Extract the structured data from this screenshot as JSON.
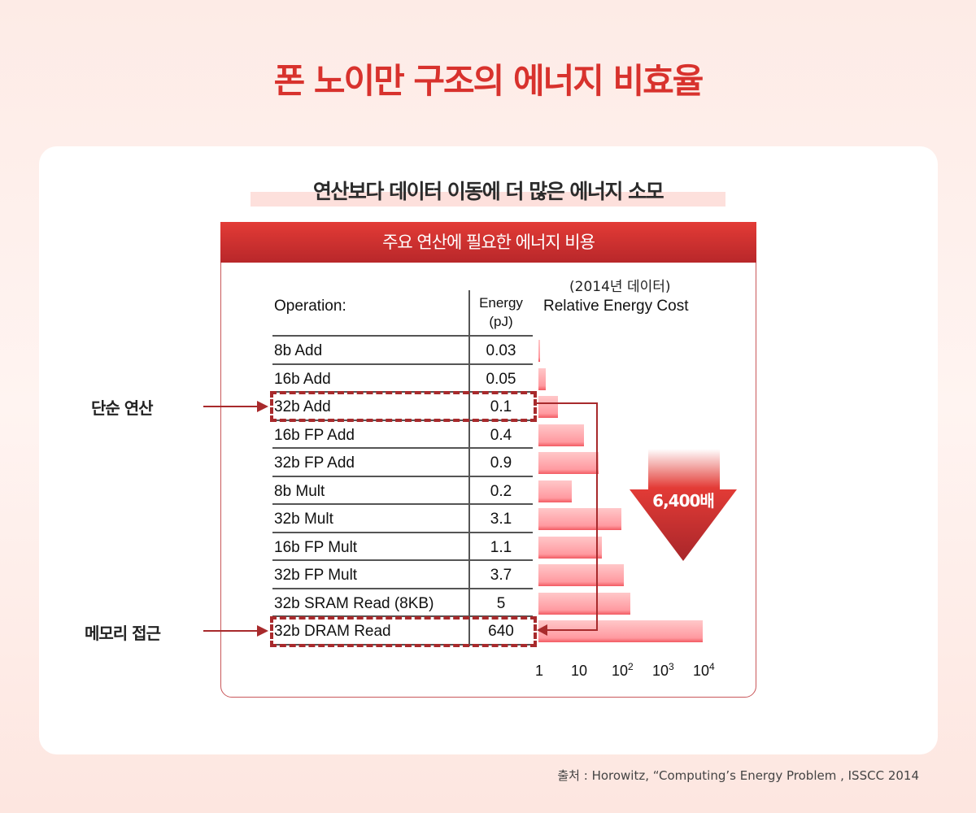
{
  "title": "폰 노이만 구조의 에너지 비효율",
  "subtitle": "연산보다 데이터 이동에 더 많은 에너지 소모",
  "header": "주요 연산에 필요한 에너지 비용",
  "labels": {
    "simple": "단순 연산",
    "memory": "메모리 접근",
    "multiplier": "6,400배"
  },
  "source": "출처 : Horowitz, “Computing’s Energy Problem , ISSCC 2014",
  "colors": {
    "accent": "#d8322d",
    "bar": "#ff9aa0",
    "dash": "#a82a2c"
  },
  "chart_data": {
    "type": "bar",
    "orientation": "horizontal",
    "col_headers": {
      "operation": "Operation:",
      "energy": "Energy",
      "energy_unit": "(pJ)"
    },
    "chart_note": "(2014년 데이터)",
    "xlabel": "Relative Energy Cost",
    "xscale": "log",
    "xlim": [
      1,
      10000
    ],
    "xticks": [
      "1",
      "10",
      "10",
      "10",
      "10"
    ],
    "xtick_exp": [
      "",
      "",
      "2",
      "3",
      "4"
    ],
    "grid": false,
    "rows": [
      {
        "op": "8b Add",
        "energy": "0.03",
        "relative": 1
      },
      {
        "op": "16b Add",
        "energy": "0.05",
        "relative": 1.5
      },
      {
        "op": "32b Add",
        "energy": "0.1",
        "relative": 3
      },
      {
        "op": "16b FP Add",
        "energy": "0.4",
        "relative": 13
      },
      {
        "op": "32b FP Add",
        "energy": "0.9",
        "relative": 30
      },
      {
        "op": "8b Mult",
        "energy": "0.2",
        "relative": 6.5
      },
      {
        "op": "32b Mult",
        "energy": "3.1",
        "relative": 110
      },
      {
        "op": "16b FP Mult",
        "energy": "1.1",
        "relative": 36
      },
      {
        "op": "32b FP Mult",
        "energy": "3.7",
        "relative": 125
      },
      {
        "op": "32b SRAM Read (8KB)",
        "energy": "5",
        "relative": 180
      },
      {
        "op": "32b DRAM Read",
        "energy": "640",
        "relative": 11000
      }
    ]
  }
}
